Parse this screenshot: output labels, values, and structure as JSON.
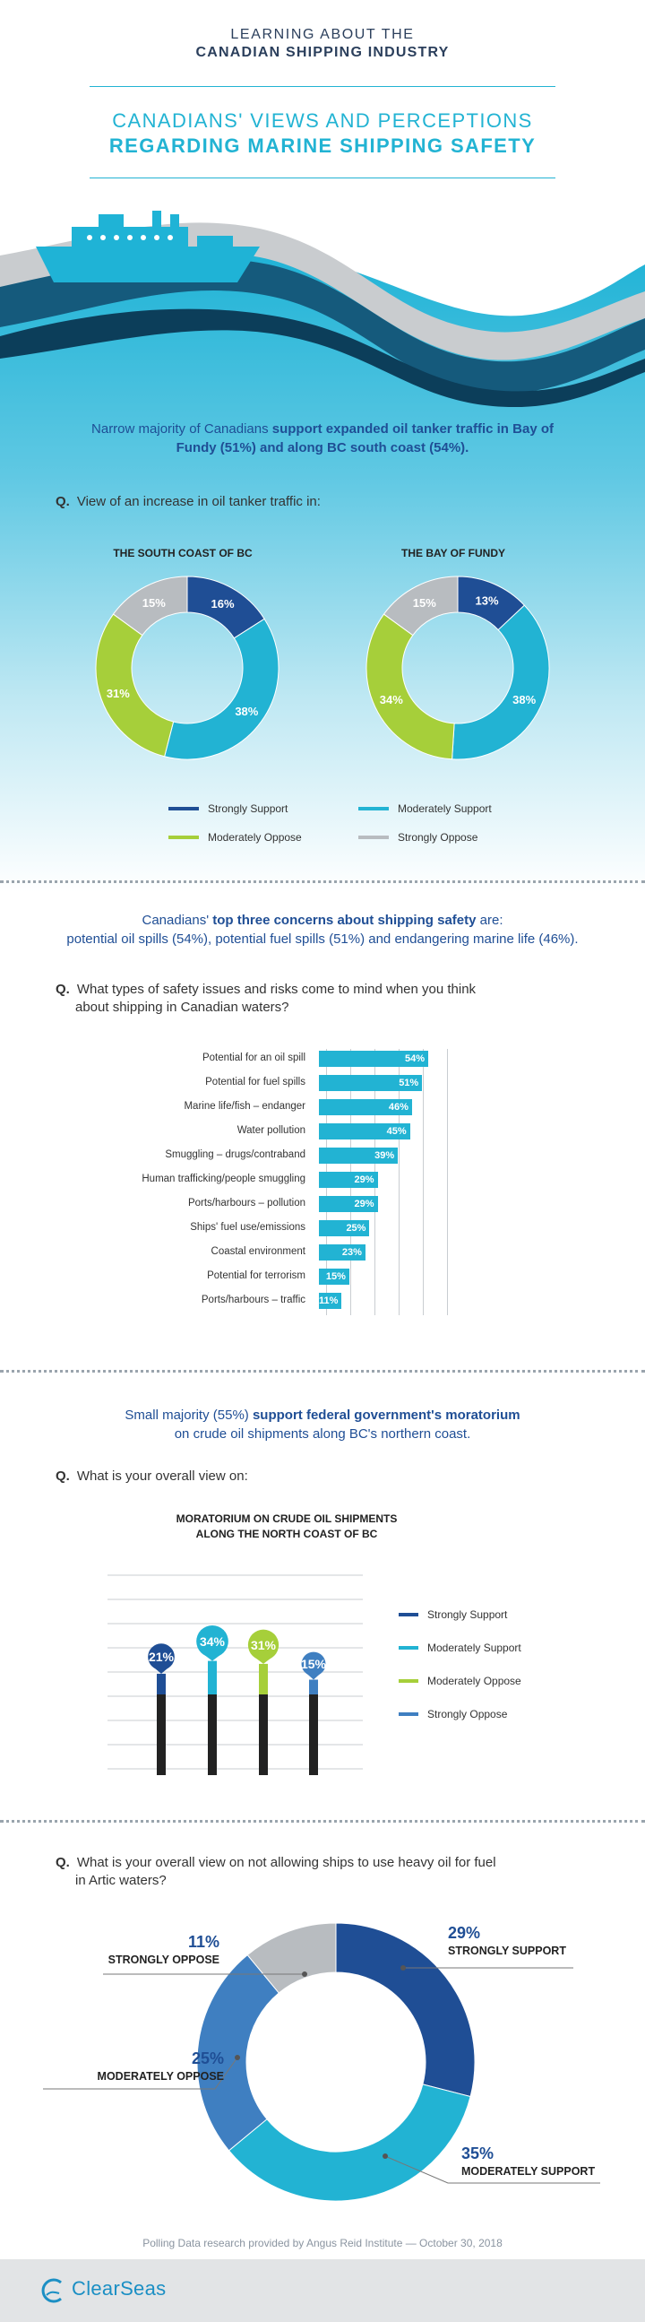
{
  "header": {
    "line1": "LEARNING ABOUT THE",
    "line2": "CANADIAN SHIPPING INDUSTRY",
    "title1": "CANADIANS' VIEWS AND PERCEPTIONS",
    "title2": "REGARDING MARINE SHIPPING SAFETY"
  },
  "colors": {
    "strongly_support": "#1f4e95",
    "moderately_support": "#22b3d3",
    "moderately_oppose": "#a6cf3a",
    "strongly_oppose": "#b8bcc0",
    "mora_strongly_oppose": "#3f7fc1",
    "arctic_moderately_oppose": "#3f7fc1",
    "arctic_moderately_support": "#22b3d3"
  },
  "section1": {
    "intro_pre": "Narrow majority of Canadians ",
    "intro_bold": "support expanded oil tanker traffic in Bay of Fundy (51%) and along BC south coast (54%).",
    "q_prefix": "Q.",
    "question": "View of an increase in oil tanker traffic in:",
    "legend": [
      "Strongly Support",
      "Moderately Support",
      "Moderately Oppose",
      "Strongly Oppose"
    ]
  },
  "section2": {
    "intro_pre": "Canadians' ",
    "intro_bold": "top three concerns about shipping safety",
    "intro_post": " are:",
    "intro_line2": "potential oil spills (54%), potential fuel spills (51%) and endangering marine life (46%).",
    "q_prefix": "Q.",
    "question_line1": "What types of safety issues and risks come to mind when you think",
    "question_line2": "about shipping in Canadian waters?"
  },
  "section3": {
    "intro_pre": "Small majority (55%) ",
    "intro_bold": "support federal government's moratorium",
    "intro_line2": "on crude oil shipments along BC's northern coast.",
    "q_prefix": "Q.",
    "question": "What is your overall view on:",
    "chart_title1": "MORATORIUM ON CRUDE OIL SHIPMENTS",
    "chart_title2": "ALONG THE NORTH COAST OF BC",
    "legend": [
      "Strongly Support",
      "Moderately Support",
      "Moderately Oppose",
      "Strongly Oppose"
    ]
  },
  "section4": {
    "q_prefix": "Q.",
    "question_line1": "What is your overall view on not allowing ships to use heavy oil for fuel",
    "question_line2": "in Artic waters?"
  },
  "footer": {
    "source": "Polling Data research provided by Angus Reid Institute — October 30, 2018",
    "logo": "ClearSeas"
  },
  "chart_data": [
    {
      "type": "pie",
      "title": "THE SOUTH COAST OF BC",
      "labels": [
        "Strongly Support",
        "Moderately Support",
        "Moderately Oppose",
        "Strongly Oppose"
      ],
      "values": [
        16,
        38,
        31,
        15
      ],
      "value_labels": [
        "16%",
        "38%",
        "31%",
        "15%"
      ]
    },
    {
      "type": "pie",
      "title": "THE BAY OF FUNDY",
      "labels": [
        "Strongly Support",
        "Moderately Support",
        "Moderately Oppose",
        "Strongly Oppose"
      ],
      "values": [
        13,
        38,
        34,
        15
      ],
      "value_labels": [
        "13%",
        "38%",
        "34%",
        "15%"
      ]
    },
    {
      "type": "bar",
      "orientation": "horizontal",
      "categories": [
        "Potential for an oil spill",
        "Potential for fuel spills",
        "Marine life/fish – endanger",
        "Water pollution",
        "Smuggling – drugs/contraband",
        "Human trafficking/people smuggling",
        "Ports/harbours – pollution",
        "Ships' fuel use/emissions",
        "Coastal environment",
        "Potential for terrorism",
        "Ports/harbours – traffic"
      ],
      "values": [
        54,
        51,
        46,
        45,
        39,
        29,
        29,
        25,
        23,
        15,
        11
      ],
      "value_labels": [
        "54%",
        "51%",
        "46%",
        "45%",
        "39%",
        "29%",
        "29%",
        "25%",
        "23%",
        "15%",
        "11%"
      ],
      "xlim": [
        0,
        100
      ]
    },
    {
      "type": "bar",
      "title": "MORATORIUM ON CRUDE OIL SHIPMENTS ALONG THE NORTH COAST OF BC",
      "categories": [
        "Strongly Support",
        "Moderately Support",
        "Moderately Oppose",
        "Strongly Oppose"
      ],
      "values": [
        21,
        34,
        31,
        15
      ],
      "value_labels": [
        "21%",
        "34%",
        "31%",
        "15%"
      ]
    },
    {
      "type": "pie",
      "labels": [
        "STRONGLY SUPPORT",
        "MODERATELY SUPPORT",
        "MODERATELY OPPOSE",
        "STRONGLY OPPOSE"
      ],
      "values": [
        29,
        35,
        25,
        11
      ],
      "value_labels": [
        "29%",
        "35%",
        "25%",
        "11%"
      ]
    }
  ]
}
